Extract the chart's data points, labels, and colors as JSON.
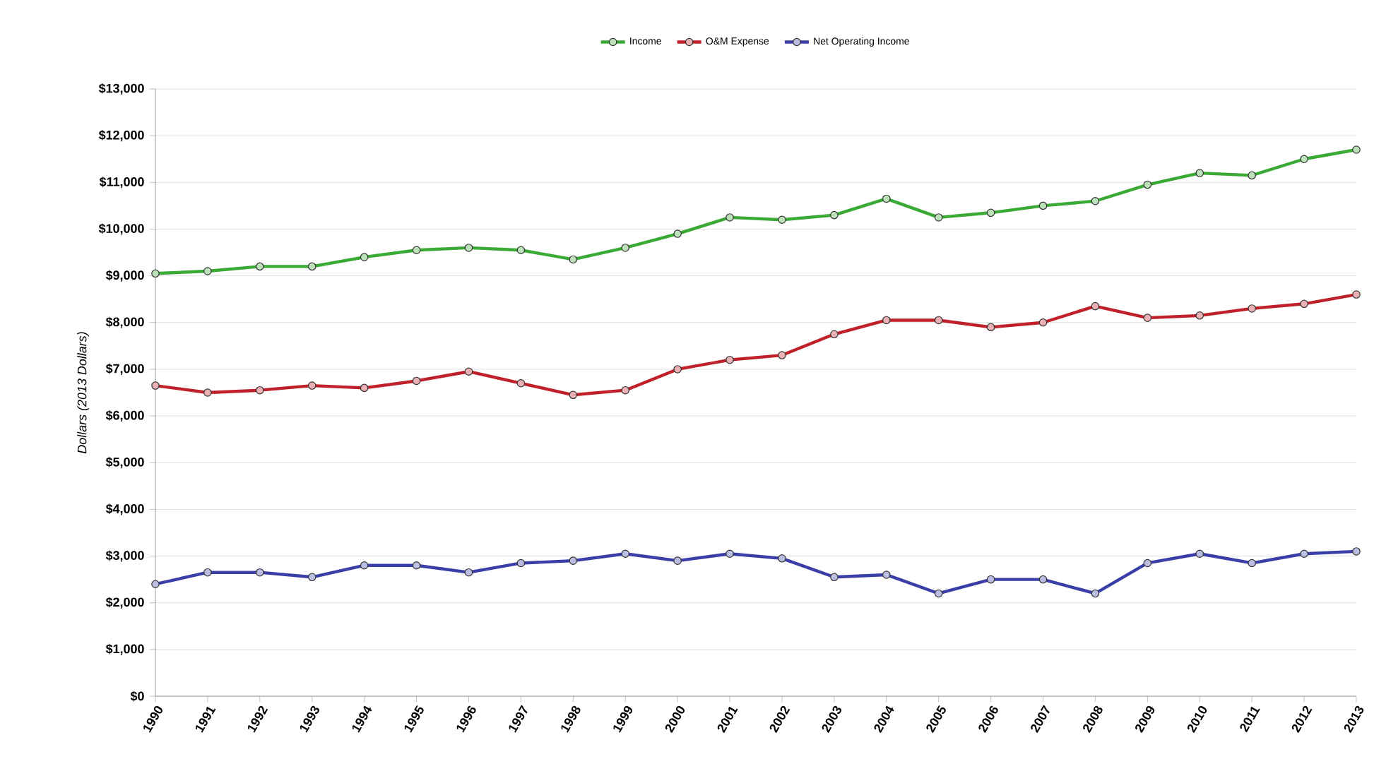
{
  "chart_data": {
    "type": "line",
    "ylabel": "Dollars (2013 Dollars)",
    "categories": [
      "1990",
      "1991",
      "1992",
      "1993",
      "1994",
      "1995",
      "1996",
      "1997",
      "1998",
      "1999",
      "2000",
      "2001",
      "2002",
      "2003",
      "2004",
      "2005",
      "2006",
      "2007",
      "2008",
      "2009",
      "2010",
      "2011",
      "2012",
      "2013"
    ],
    "series": [
      {
        "name": "Income",
        "color": "#3aa935",
        "values": [
          9050,
          9100,
          9200,
          9200,
          9400,
          9550,
          9600,
          9550,
          9350,
          9600,
          9900,
          10250,
          10200,
          10300,
          10650,
          10250,
          10350,
          10500,
          10600,
          10950,
          11200,
          11150,
          11500,
          11700
        ]
      },
      {
        "name": "O&M Expense",
        "color": "#c0202a",
        "values": [
          6650,
          6500,
          6550,
          6650,
          6600,
          6750,
          6950,
          6700,
          6450,
          6550,
          7000,
          7200,
          7300,
          7750,
          8050,
          8050,
          7900,
          8000,
          8350,
          8100,
          8150,
          8300,
          8400,
          8600
        ]
      },
      {
        "name": "Net Operating Income",
        "color": "#3a3fa8",
        "values": [
          2400,
          2650,
          2650,
          2550,
          2800,
          2800,
          2650,
          2850,
          2900,
          3050,
          2900,
          3050,
          2950,
          2550,
          2600,
          2200,
          2500,
          2500,
          2200,
          2850,
          3050,
          2850,
          3050,
          3100
        ]
      }
    ],
    "ylim": [
      0,
      13000
    ],
    "yticks": [
      {
        "value": 0,
        "label": "$0"
      },
      {
        "value": 1000,
        "label": "$1,000"
      },
      {
        "value": 2000,
        "label": "$2,000"
      },
      {
        "value": 3000,
        "label": "$3,000"
      },
      {
        "value": 4000,
        "label": "$4,000"
      },
      {
        "value": 5000,
        "label": "$5,000"
      },
      {
        "value": 6000,
        "label": "$6,000"
      },
      {
        "value": 7000,
        "label": "$7,000"
      },
      {
        "value": 8000,
        "label": "$8,000"
      },
      {
        "value": 9000,
        "label": "$9,000"
      },
      {
        "value": 10000,
        "label": "$10,000"
      },
      {
        "value": 11000,
        "label": "$11,000"
      },
      {
        "value": 12000,
        "label": "$12,000"
      },
      {
        "value": 13000,
        "label": "$13,000"
      }
    ],
    "grid": "y",
    "legend": "top",
    "marker": "circle",
    "line_style": "solid"
  }
}
